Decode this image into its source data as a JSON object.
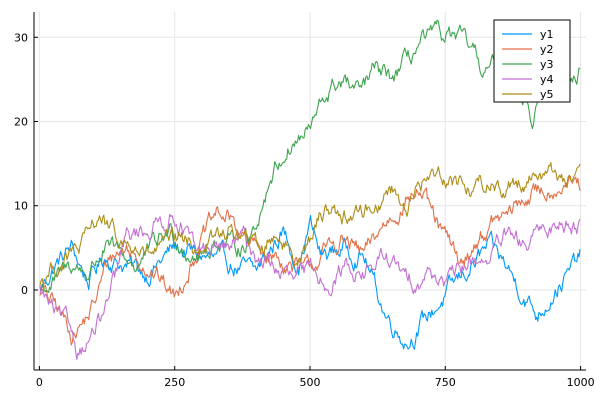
{
  "chart_data": {
    "type": "line",
    "title": "",
    "xlabel": "",
    "ylabel": "",
    "xlim": [
      -10,
      1010
    ],
    "ylim": [
      -9.5,
      33
    ],
    "grid": true,
    "legend_position": "top-right",
    "x_ticks": [
      0,
      250,
      500,
      750,
      1000
    ],
    "x_tick_labels": [
      "0",
      "250",
      "500",
      "750",
      "1000"
    ],
    "y_ticks": [
      0,
      10,
      20,
      30
    ],
    "y_tick_labels": [
      "0",
      "10",
      "20",
      "30"
    ],
    "x_range": [
      1,
      1000
    ],
    "series": [
      {
        "name": "y1",
        "color": "#009AFA",
        "keypoints": [
          [
            1,
            0
          ],
          [
            30,
            3
          ],
          [
            60,
            5
          ],
          [
            90,
            1
          ],
          [
            120,
            4
          ],
          [
            160,
            3
          ],
          [
            200,
            2
          ],
          [
            250,
            5
          ],
          [
            300,
            4
          ],
          [
            350,
            3
          ],
          [
            400,
            2
          ],
          [
            450,
            7
          ],
          [
            480,
            3
          ],
          [
            500,
            8
          ],
          [
            520,
            4
          ],
          [
            560,
            5
          ],
          [
            600,
            4
          ],
          [
            640,
            -3
          ],
          [
            680,
            -6
          ],
          [
            720,
            -3
          ],
          [
            760,
            0
          ],
          [
            800,
            3
          ],
          [
            830,
            5
          ],
          [
            860,
            3
          ],
          [
            890,
            0
          ],
          [
            920,
            -3
          ],
          [
            950,
            0
          ],
          [
            980,
            2
          ],
          [
            1000,
            4
          ]
        ]
      },
      {
        "name": "y2",
        "color": "#E36F47",
        "keypoints": [
          [
            1,
            0
          ],
          [
            30,
            -2
          ],
          [
            60,
            -5
          ],
          [
            80,
            -4
          ],
          [
            100,
            -2
          ],
          [
            130,
            4
          ],
          [
            160,
            5
          ],
          [
            200,
            3
          ],
          [
            240,
            0
          ],
          [
            250,
            -1
          ],
          [
            270,
            2
          ],
          [
            300,
            6
          ],
          [
            330,
            9
          ],
          [
            360,
            8
          ],
          [
            380,
            6
          ],
          [
            400,
            5
          ],
          [
            430,
            4
          ],
          [
            460,
            3
          ],
          [
            490,
            2
          ],
          [
            520,
            4
          ],
          [
            560,
            6
          ],
          [
            600,
            4
          ],
          [
            640,
            8
          ],
          [
            680,
            11
          ],
          [
            700,
            12
          ],
          [
            740,
            7
          ],
          [
            780,
            3
          ],
          [
            810,
            6
          ],
          [
            840,
            8
          ],
          [
            870,
            9
          ],
          [
            900,
            11
          ],
          [
            940,
            12
          ],
          [
            970,
            13
          ],
          [
            1000,
            12
          ]
        ]
      },
      {
        "name": "y3",
        "color": "#3EA44E",
        "keypoints": [
          [
            1,
            0
          ],
          [
            30,
            1
          ],
          [
            60,
            3
          ],
          [
            90,
            2
          ],
          [
            120,
            5
          ],
          [
            150,
            4
          ],
          [
            180,
            3
          ],
          [
            210,
            5
          ],
          [
            240,
            7
          ],
          [
            270,
            5
          ],
          [
            300,
            4
          ],
          [
            330,
            6
          ],
          [
            360,
            5
          ],
          [
            390,
            6
          ],
          [
            410,
            10
          ],
          [
            430,
            14
          ],
          [
            460,
            17
          ],
          [
            500,
            19
          ],
          [
            530,
            23
          ],
          [
            560,
            25
          ],
          [
            590,
            23
          ],
          [
            620,
            26
          ],
          [
            650,
            25
          ],
          [
            680,
            27
          ],
          [
            700,
            29
          ],
          [
            730,
            30
          ],
          [
            760,
            30
          ],
          [
            790,
            29
          ],
          [
            820,
            26
          ],
          [
            850,
            27
          ],
          [
            880,
            25
          ],
          [
            900,
            23
          ],
          [
            910,
            20
          ],
          [
            930,
            24
          ],
          [
            960,
            26
          ],
          [
            980,
            25
          ],
          [
            1000,
            26
          ]
        ]
      },
      {
        "name": "y4",
        "color": "#C271D2",
        "keypoints": [
          [
            1,
            0
          ],
          [
            30,
            -3
          ],
          [
            60,
            -5
          ],
          [
            70,
            -7
          ],
          [
            90,
            -6
          ],
          [
            120,
            -3
          ],
          [
            140,
            1
          ],
          [
            160,
            6
          ],
          [
            190,
            7
          ],
          [
            220,
            8
          ],
          [
            250,
            9
          ],
          [
            270,
            7
          ],
          [
            290,
            4
          ],
          [
            320,
            5
          ],
          [
            350,
            5
          ],
          [
            380,
            6
          ],
          [
            400,
            4
          ],
          [
            430,
            3
          ],
          [
            470,
            1
          ],
          [
            500,
            2
          ],
          [
            530,
            1
          ],
          [
            570,
            3
          ],
          [
            600,
            2
          ],
          [
            640,
            4
          ],
          [
            680,
            1
          ],
          [
            720,
            2
          ],
          [
            760,
            1
          ],
          [
            790,
            3
          ],
          [
            830,
            4
          ],
          [
            860,
            6
          ],
          [
            900,
            5
          ],
          [
            930,
            7
          ],
          [
            960,
            8
          ],
          [
            1000,
            8
          ]
        ]
      },
      {
        "name": "y5",
        "color": "#AC8D18",
        "keypoints": [
          [
            1,
            1
          ],
          [
            30,
            3
          ],
          [
            60,
            4
          ],
          [
            90,
            6
          ],
          [
            110,
            9
          ],
          [
            140,
            6
          ],
          [
            170,
            5
          ],
          [
            200,
            4
          ],
          [
            230,
            5
          ],
          [
            260,
            6
          ],
          [
            290,
            5
          ],
          [
            320,
            6
          ],
          [
            350,
            7
          ],
          [
            380,
            6
          ],
          [
            410,
            5
          ],
          [
            440,
            7
          ],
          [
            470,
            4
          ],
          [
            500,
            6
          ],
          [
            530,
            10
          ],
          [
            560,
            9
          ],
          [
            590,
            9
          ],
          [
            620,
            10
          ],
          [
            650,
            12
          ],
          [
            680,
            10
          ],
          [
            710,
            13
          ],
          [
            740,
            14
          ],
          [
            770,
            13
          ],
          [
            800,
            12
          ],
          [
            830,
            13
          ],
          [
            860,
            12
          ],
          [
            890,
            13
          ],
          [
            920,
            14
          ],
          [
            950,
            14
          ],
          [
            980,
            13
          ],
          [
            1000,
            13
          ]
        ]
      }
    ]
  }
}
